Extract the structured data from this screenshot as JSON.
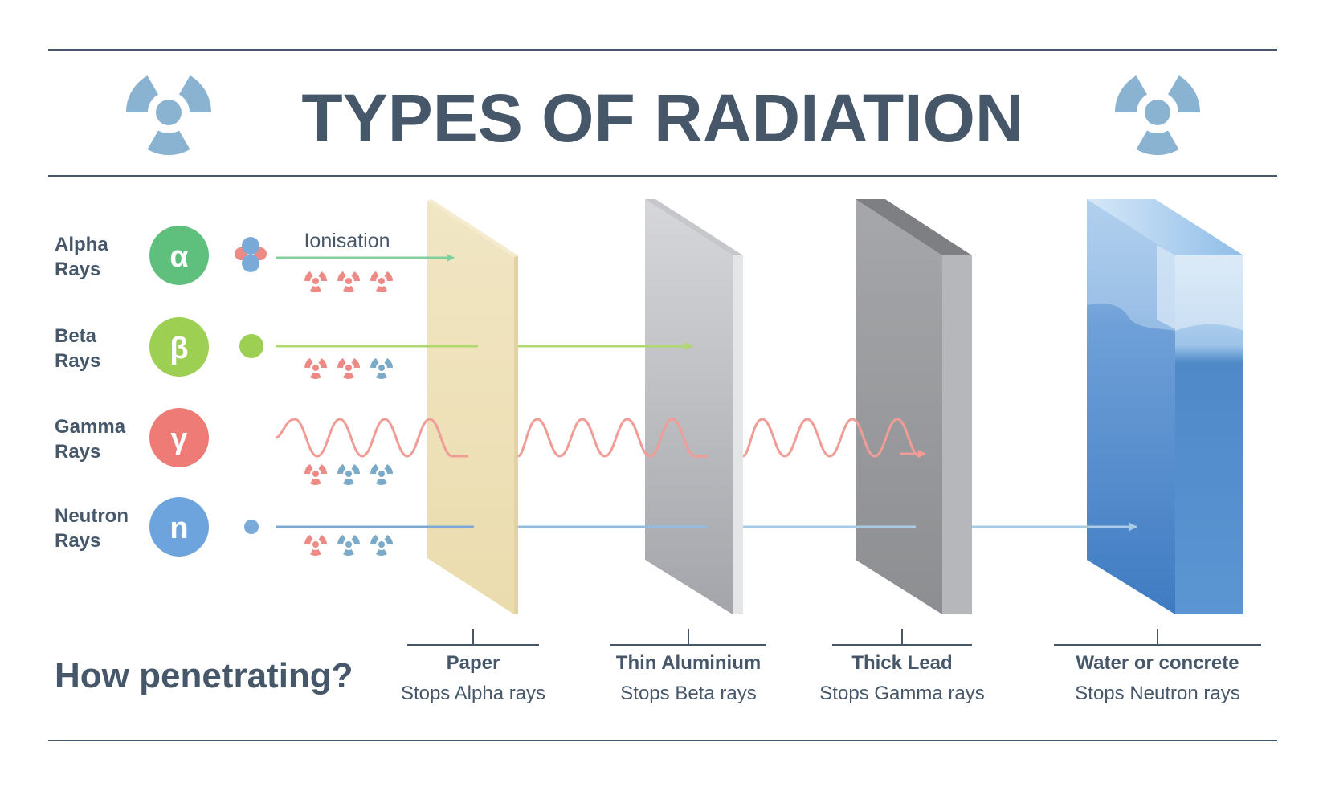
{
  "title": "TYPES OF RADIATION",
  "rays": [
    {
      "label_line1": "Alpha",
      "label_line2": "Rays",
      "symbol": "α",
      "color": "#5fc07e",
      "path_color": "#7fd09a",
      "ion_colors": [
        "#ee8a85",
        "#ee8a85",
        "#ee8a85"
      ]
    },
    {
      "label_line1": "Beta",
      "label_line2": "Rays",
      "symbol": "β",
      "color": "#9ccf52",
      "path_color": "#b0d86e",
      "ion_colors": [
        "#ee8a85",
        "#ee8a85",
        "#7aaac8"
      ]
    },
    {
      "label_line1": "Gamma",
      "label_line2": "Rays",
      "symbol": "γ",
      "color": "#ee7b76",
      "path_color": "#f09c97",
      "ion_colors": [
        "#ee8a85",
        "#7aaac8",
        "#7aaac8"
      ]
    },
    {
      "label_line1": "Neutron",
      "label_line2": "Rays",
      "symbol": "n",
      "color": "#6ea4de",
      "path_color": "#93bde0",
      "ion_colors": [
        "#ee8a85",
        "#7aaac8",
        "#7aaac8"
      ]
    }
  ],
  "ionisation_label": "Ionisation",
  "question": "How penetrating?",
  "barriers": [
    {
      "name": "Paper",
      "stops": "Stops Alpha rays"
    },
    {
      "name": "Thin Aluminium",
      "stops": "Stops Beta rays"
    },
    {
      "name": "Thick Lead",
      "stops": "Stops Gamma rays"
    },
    {
      "name": "Water or concrete",
      "stops": "Stops Neutron rays"
    }
  ],
  "colors": {
    "text": "#46576a",
    "rule": "#46576a",
    "hazard_icon": "#8ab3d1"
  }
}
